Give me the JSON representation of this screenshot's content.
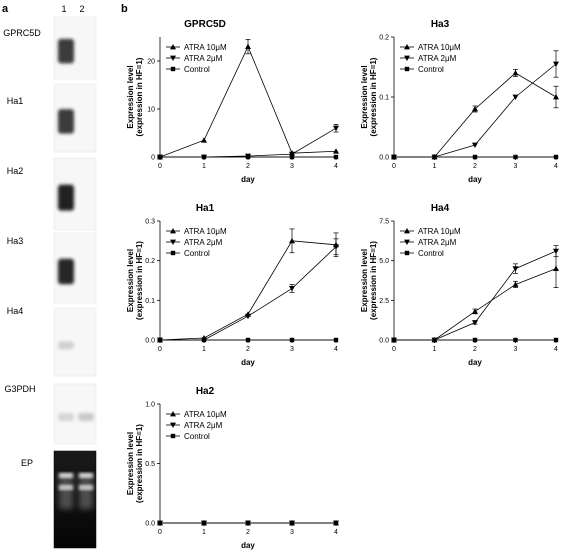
{
  "figure": {
    "panel_a_label": "a",
    "panel_b_label": "b",
    "lane_labels": [
      "1",
      "2"
    ],
    "blot_labels": [
      "GPRC5D",
      "Ha1",
      "Ha2",
      "Ha3",
      "Ha4",
      "G3PDH",
      "EP"
    ],
    "blots": [
      {
        "label": "GPRC5D",
        "lane1": 0.85,
        "lane2": 0.0
      },
      {
        "label": "Ha1",
        "lane1": 0.85,
        "lane2": 0.0
      },
      {
        "label": "Ha2",
        "lane1": 1.0,
        "lane2": 0.0
      },
      {
        "label": "Ha3",
        "lane1": 0.95,
        "lane2": 0.0
      },
      {
        "label": "Ha4",
        "lane1": 0.15,
        "lane2": 0.0
      },
      {
        "label": "G3PDH",
        "lane1": 0.1,
        "lane2": 0.2
      },
      {
        "label": "EP",
        "lane1": 1.0,
        "lane2": 1.0
      }
    ]
  },
  "chart_data": [
    {
      "type": "line",
      "title": "GPRC5D",
      "xlabel": "day",
      "ylabel_line1": "Expression level",
      "ylabel_line2": "(expression in HF=1)",
      "x": [
        0,
        1,
        2,
        3,
        4
      ],
      "xticks": [
        "0",
        "1",
        "2",
        "3",
        "4"
      ],
      "ylim": [
        0,
        25
      ],
      "yticks": [
        0,
        10,
        20
      ],
      "ytick_labels": [
        "0",
        "10",
        "20"
      ],
      "series": [
        {
          "name": "ATRA 10μM",
          "marker": "triangle-up",
          "values": [
            0,
            3.5,
            23,
            0.8,
            1.2
          ],
          "err": [
            0,
            0,
            1.5,
            0,
            0
          ]
        },
        {
          "name": "ATRA 2μM",
          "marker": "triangle-down",
          "values": [
            0,
            0,
            0.2,
            0.6,
            6
          ],
          "err": [
            0,
            0,
            0,
            0,
            0.8
          ]
        },
        {
          "name": "Control",
          "marker": "square",
          "values": [
            0,
            0,
            0,
            0,
            0
          ],
          "err": [
            0,
            0,
            0,
            0,
            0
          ]
        }
      ]
    },
    {
      "type": "line",
      "title": "Ha3",
      "xlabel": "day",
      "ylabel_line1": "Expression level",
      "ylabel_line2": "(expression in HF=1)",
      "x": [
        0,
        1,
        2,
        3,
        4
      ],
      "xticks": [
        "0",
        "1",
        "2",
        "3",
        "4"
      ],
      "ylim": [
        0,
        0.2
      ],
      "yticks": [
        0,
        0.1,
        0.2
      ],
      "ytick_labels": [
        "0.0",
        "0.1",
        "0.2"
      ],
      "series": [
        {
          "name": "ATRA 10μM",
          "marker": "triangle-up",
          "values": [
            0,
            0,
            0.08,
            0.14,
            0.1
          ],
          "err": [
            0,
            0,
            0.005,
            0.006,
            0.018
          ]
        },
        {
          "name": "ATRA 2μM",
          "marker": "triangle-down",
          "values": [
            0,
            0,
            0.02,
            0.1,
            0.155
          ],
          "err": [
            0,
            0,
            0,
            0,
            0.022
          ]
        },
        {
          "name": "Control",
          "marker": "square",
          "values": [
            0,
            0,
            0,
            0,
            0
          ],
          "err": [
            0,
            0,
            0,
            0,
            0
          ]
        }
      ]
    },
    {
      "type": "line",
      "title": "Ha1",
      "xlabel": "day",
      "ylabel_line1": "Expression level",
      "ylabel_line2": "(expression in HF=1)",
      "x": [
        0,
        1,
        2,
        3,
        4
      ],
      "xticks": [
        "0",
        "1",
        "2",
        "3",
        "4"
      ],
      "ylim": [
        0,
        0.3
      ],
      "yticks": [
        0,
        0.1,
        0.2,
        0.3
      ],
      "ytick_labels": [
        "0.0",
        "0.1",
        "0.2",
        "0.3"
      ],
      "series": [
        {
          "name": "ATRA 10μM",
          "marker": "triangle-up",
          "values": [
            0,
            0.005,
            0.065,
            0.25,
            0.24
          ],
          "err": [
            0,
            0,
            0,
            0.03,
            0.03
          ]
        },
        {
          "name": "ATRA 2μM",
          "marker": "triangle-down",
          "values": [
            0,
            0,
            0.06,
            0.13,
            0.235
          ],
          "err": [
            0,
            0,
            0,
            0.01,
            0.02
          ]
        },
        {
          "name": "Control",
          "marker": "square",
          "values": [
            0,
            0,
            0,
            0,
            0
          ],
          "err": [
            0,
            0,
            0,
            0,
            0
          ]
        }
      ]
    },
    {
      "type": "line",
      "title": "Ha4",
      "xlabel": "day",
      "ylabel_line1": "Expression level",
      "ylabel_line2": "(expression in HF=1)",
      "x": [
        0,
        1,
        2,
        3,
        4
      ],
      "xticks": [
        "0",
        "1",
        "2",
        "3",
        "4"
      ],
      "ylim": [
        0,
        7.5
      ],
      "yticks": [
        0,
        2.5,
        5,
        7.5
      ],
      "ytick_labels": [
        "0.0",
        "2.5",
        "5.0",
        "7.5"
      ],
      "series": [
        {
          "name": "ATRA 10μM",
          "marker": "triangle-up",
          "values": [
            0,
            0,
            1.8,
            3.5,
            4.5
          ],
          "err": [
            0,
            0,
            0.15,
            0.2,
            1.2
          ]
        },
        {
          "name": "ATRA 2μM",
          "marker": "triangle-down",
          "values": [
            0,
            0,
            1.1,
            4.5,
            5.6
          ],
          "err": [
            0,
            0,
            0.1,
            0.3,
            0.35
          ]
        },
        {
          "name": "Control",
          "marker": "square",
          "values": [
            0,
            0,
            0,
            0,
            0
          ],
          "err": [
            0,
            0,
            0,
            0,
            0
          ]
        }
      ]
    },
    {
      "type": "line",
      "title": "Ha2",
      "xlabel": "day",
      "ylabel_line1": "Expression level",
      "ylabel_line2": "(expression in HF=1)",
      "x": [
        0,
        1,
        2,
        3,
        4
      ],
      "xticks": [
        "0",
        "1",
        "2",
        "3",
        "4"
      ],
      "ylim": [
        0,
        1.0
      ],
      "yticks": [
        0,
        0.5,
        1.0
      ],
      "ytick_labels": [
        "0.0",
        "0.5",
        "1.0"
      ],
      "series": [
        {
          "name": "ATRA 10μM",
          "marker": "triangle-up",
          "values": [
            0,
            0,
            0,
            0,
            0
          ],
          "err": [
            0,
            0,
            0,
            0,
            0
          ]
        },
        {
          "name": "ATRA 2μM",
          "marker": "triangle-down",
          "values": [
            0,
            0,
            0,
            0,
            0
          ],
          "err": [
            0,
            0,
            0,
            0,
            0
          ]
        },
        {
          "name": "Control",
          "marker": "square",
          "values": [
            0,
            0,
            0,
            0,
            0
          ],
          "err": [
            0,
            0,
            0,
            0,
            0
          ]
        }
      ]
    }
  ]
}
